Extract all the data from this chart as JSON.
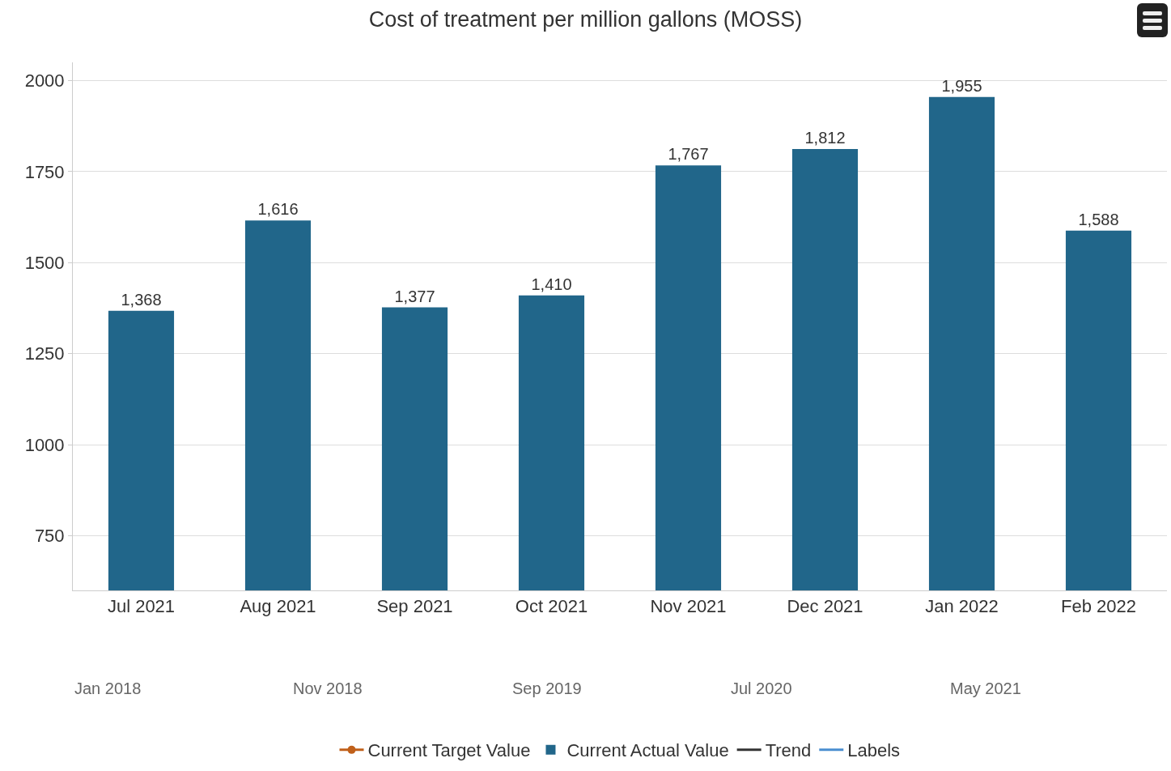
{
  "chart_data": {
    "type": "bar",
    "title": "Cost of treatment per million gallons (MOSS)",
    "categories": [
      "Jul 2021",
      "Aug 2021",
      "Sep 2021",
      "Oct 2021",
      "Nov 2021",
      "Dec 2021",
      "Jan 2022",
      "Feb 2022"
    ],
    "series": [
      {
        "name": "Current Target Value",
        "type": "line",
        "marker": "circle",
        "color": "#c0601a",
        "values": [
          null,
          null,
          null,
          null,
          null,
          null,
          null,
          null
        ]
      },
      {
        "name": "Current Actual Value",
        "color": "#21668a",
        "values": [
          1368,
          1616,
          1377,
          1410,
          1767,
          1812,
          1955,
          1588
        ],
        "value_labels": [
          "1,368",
          "1,616",
          "1,377",
          "1,410",
          "1,767",
          "1,812",
          "1,955",
          "1,588"
        ]
      },
      {
        "name": "Trend",
        "type": "line",
        "marker": "none",
        "color": "#333333",
        "values": [
          null,
          null,
          null,
          null,
          null,
          null,
          null,
          null
        ]
      },
      {
        "name": "Labels",
        "type": "line",
        "marker": "none",
        "color": "#4a8ed0",
        "values": [
          null,
          null,
          null,
          null,
          null,
          null,
          null,
          null
        ]
      }
    ],
    "ylim": [
      600,
      2050
    ],
    "yticks": [
      750,
      1000,
      1250,
      1500,
      1750,
      2000
    ],
    "grid": "y",
    "legend": "bottom",
    "annotations": [
      "Jan 2018",
      "Nov 2018",
      "Sep 2019",
      "Jul 2020",
      "May 2021"
    ]
  }
}
